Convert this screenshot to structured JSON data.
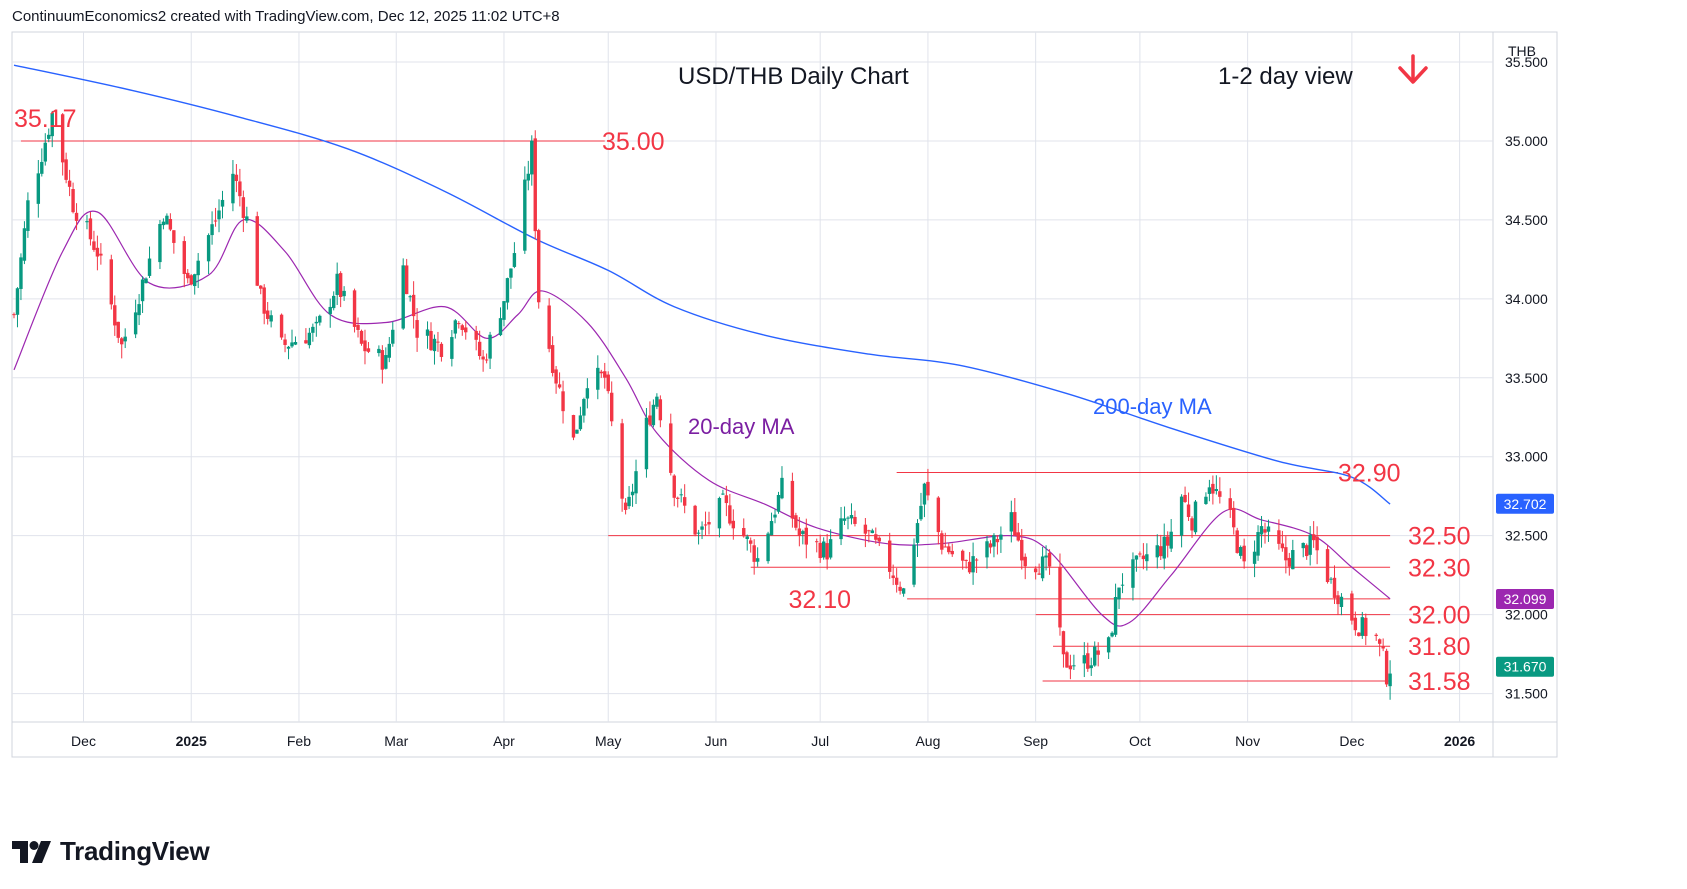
{
  "header": {
    "text": "ContinuumEconomics2 created with TradingView.com, Dec 12, 2025 11:02 UTC+8"
  },
  "brand": {
    "name": "TradingView"
  },
  "colors": {
    "up": "#089981",
    "down": "#f23645",
    "ma200": "#2962ff",
    "ma20": "#9c27b0",
    "level": "#f23645",
    "grid": "#e0e3eb"
  },
  "chart_data": {
    "type": "candlestick",
    "title": "USD/THB Daily Chart",
    "view_label": "1-2 day view",
    "direction_icon": "arrow-down-icon",
    "currency": "THB",
    "grid": true,
    "ylim": [
      31.2,
      35.6
    ],
    "y_ticks": [
      "35.500",
      "35.000",
      "34.500",
      "34.000",
      "33.500",
      "33.000",
      "32.500",
      "32.000",
      "31.500"
    ],
    "x_ticks": [
      "Dec",
      "2025",
      "Feb",
      "Mar",
      "Apr",
      "May",
      "Jun",
      "Jul",
      "Aug",
      "Sep",
      "Oct",
      "Nov",
      "Dec",
      "2026"
    ],
    "price_badges": [
      {
        "label": "32.702",
        "value": 32.702,
        "color": "#2962ff"
      },
      {
        "label": "32.099",
        "value": 32.099,
        "color": "#9c27b0"
      },
      {
        "label": "31.670",
        "value": 31.67,
        "color": "#089981"
      }
    ],
    "levels": [
      {
        "label": "35.00",
        "value": 35.0
      },
      {
        "label": "32.90",
        "value": 32.9
      },
      {
        "label": "32.50",
        "value": 32.5
      },
      {
        "label": "32.30",
        "value": 32.3
      },
      {
        "label": "32.10",
        "value": 32.1
      },
      {
        "label": "32.00",
        "value": 32.0
      },
      {
        "label": "31.80",
        "value": 31.8
      },
      {
        "label": "31.58",
        "value": 31.58
      }
    ],
    "annotations": [
      {
        "label": "35.17",
        "value": 35.17
      },
      {
        "label": "20-day MA"
      },
      {
        "label": "200-day MA"
      }
    ],
    "price_path": [
      [
        "2024-11-11",
        33.9
      ],
      [
        "2024-11-15",
        34.6
      ],
      [
        "2024-11-20",
        35.0
      ],
      [
        "2024-11-22",
        35.17
      ],
      [
        "2024-11-28",
        34.6
      ],
      [
        "2024-12-05",
        34.3
      ],
      [
        "2024-12-12",
        33.7
      ],
      [
        "2024-12-18",
        34.1
      ],
      [
        "2024-12-24",
        34.55
      ],
      [
        "2024-12-31",
        34.1
      ],
      [
        "2025-01-08",
        34.5
      ],
      [
        "2025-01-13",
        34.8
      ],
      [
        "2025-01-17",
        34.5
      ],
      [
        "2025-01-21",
        34.0
      ],
      [
        "2025-01-27",
        33.7
      ],
      [
        "2025-02-06",
        33.8
      ],
      [
        "2025-02-12",
        34.1
      ],
      [
        "2025-02-19",
        33.7
      ],
      [
        "2025-02-26",
        33.6
      ],
      [
        "2025-03-03",
        34.2
      ],
      [
        "2025-03-07",
        33.8
      ],
      [
        "2025-03-14",
        33.7
      ],
      [
        "2025-03-19",
        33.9
      ],
      [
        "2025-03-26",
        33.6
      ],
      [
        "2025-04-01",
        34.0
      ],
      [
        "2025-04-04",
        34.3
      ],
      [
        "2025-04-09",
        34.95
      ],
      [
        "2025-04-11",
        34.0
      ],
      [
        "2025-04-16",
        33.5
      ],
      [
        "2025-04-21",
        33.1
      ],
      [
        "2025-04-25",
        33.5
      ],
      [
        "2025-04-30",
        33.5
      ],
      [
        "2025-05-06",
        32.6
      ],
      [
        "2025-05-12",
        33.2
      ],
      [
        "2025-05-15",
        33.4
      ],
      [
        "2025-05-20",
        32.8
      ],
      [
        "2025-05-27",
        32.5
      ],
      [
        "2025-06-03",
        32.7
      ],
      [
        "2025-06-09",
        32.5
      ],
      [
        "2025-06-13",
        32.35
      ],
      [
        "2025-06-20",
        32.8
      ],
      [
        "2025-06-25",
        32.5
      ],
      [
        "2025-07-03",
        32.4
      ],
      [
        "2025-07-08",
        32.6
      ],
      [
        "2025-07-15",
        32.5
      ],
      [
        "2025-07-21",
        32.3
      ],
      [
        "2025-07-25",
        32.15
      ],
      [
        "2025-07-31",
        32.8
      ],
      [
        "2025-08-05",
        32.45
      ],
      [
        "2025-08-12",
        32.3
      ],
      [
        "2025-08-20",
        32.45
      ],
      [
        "2025-08-25",
        32.6
      ],
      [
        "2025-08-29",
        32.35
      ],
      [
        "2025-09-05",
        32.3
      ],
      [
        "2025-09-09",
        31.7
      ],
      [
        "2025-09-15",
        31.7
      ],
      [
        "2025-09-22",
        31.8
      ],
      [
        "2025-09-25",
        32.2
      ],
      [
        "2025-10-02",
        32.35
      ],
      [
        "2025-10-09",
        32.45
      ],
      [
        "2025-10-13",
        32.75
      ],
      [
        "2025-10-16",
        32.6
      ],
      [
        "2025-10-21",
        32.85
      ],
      [
        "2025-10-27",
        32.6
      ],
      [
        "2025-10-31",
        32.3
      ],
      [
        "2025-11-05",
        32.55
      ],
      [
        "2025-11-12",
        32.35
      ],
      [
        "2025-11-20",
        32.45
      ],
      [
        "2025-11-25",
        32.2
      ],
      [
        "2025-11-28",
        32.1
      ],
      [
        "2025-12-02",
        31.95
      ],
      [
        "2025-12-08",
        31.85
      ],
      [
        "2025-12-10",
        31.72
      ],
      [
        "2025-12-11",
        31.62
      ],
      [
        "2025-12-12",
        31.67
      ]
    ],
    "ma200_path": [
      [
        "2024-11-11",
        35.48
      ],
      [
        "2024-12-15",
        35.32
      ],
      [
        "2025-01-15",
        35.15
      ],
      [
        "2025-02-15",
        34.95
      ],
      [
        "2025-03-15",
        34.68
      ],
      [
        "2025-04-10",
        34.38
      ],
      [
        "2025-05-01",
        34.18
      ],
      [
        "2025-05-20",
        33.95
      ],
      [
        "2025-06-15",
        33.77
      ],
      [
        "2025-07-15",
        33.65
      ],
      [
        "2025-08-10",
        33.58
      ],
      [
        "2025-09-10",
        33.4
      ],
      [
        "2025-10-10",
        33.18
      ],
      [
        "2025-11-10",
        32.97
      ],
      [
        "2025-12-01",
        32.87
      ],
      [
        "2025-12-12",
        32.7
      ]
    ],
    "ma20_path": [
      [
        "2024-11-11",
        33.55
      ],
      [
        "2024-11-25",
        34.3
      ],
      [
        "2024-12-05",
        34.55
      ],
      [
        "2024-12-20",
        34.1
      ],
      [
        "2025-01-06",
        34.15
      ],
      [
        "2025-01-16",
        34.5
      ],
      [
        "2025-01-28",
        34.3
      ],
      [
        "2025-02-10",
        33.9
      ],
      [
        "2025-02-26",
        33.85
      ],
      [
        "2025-03-15",
        33.95
      ],
      [
        "2025-03-27",
        33.75
      ],
      [
        "2025-04-05",
        33.9
      ],
      [
        "2025-04-12",
        34.05
      ],
      [
        "2025-04-25",
        33.85
      ],
      [
        "2025-05-06",
        33.5
      ],
      [
        "2025-05-15",
        33.15
      ],
      [
        "2025-05-30",
        32.85
      ],
      [
        "2025-06-15",
        32.7
      ],
      [
        "2025-06-30",
        32.55
      ],
      [
        "2025-07-20",
        32.45
      ],
      [
        "2025-08-05",
        32.45
      ],
      [
        "2025-08-25",
        32.5
      ],
      [
        "2025-09-05",
        32.4
      ],
      [
        "2025-09-20",
        32.0
      ],
      [
        "2025-09-28",
        31.95
      ],
      [
        "2025-10-10",
        32.25
      ],
      [
        "2025-10-25",
        32.65
      ],
      [
        "2025-11-05",
        32.6
      ],
      [
        "2025-11-20",
        32.5
      ],
      [
        "2025-12-01",
        32.3
      ],
      [
        "2025-12-12",
        32.1
      ]
    ]
  }
}
